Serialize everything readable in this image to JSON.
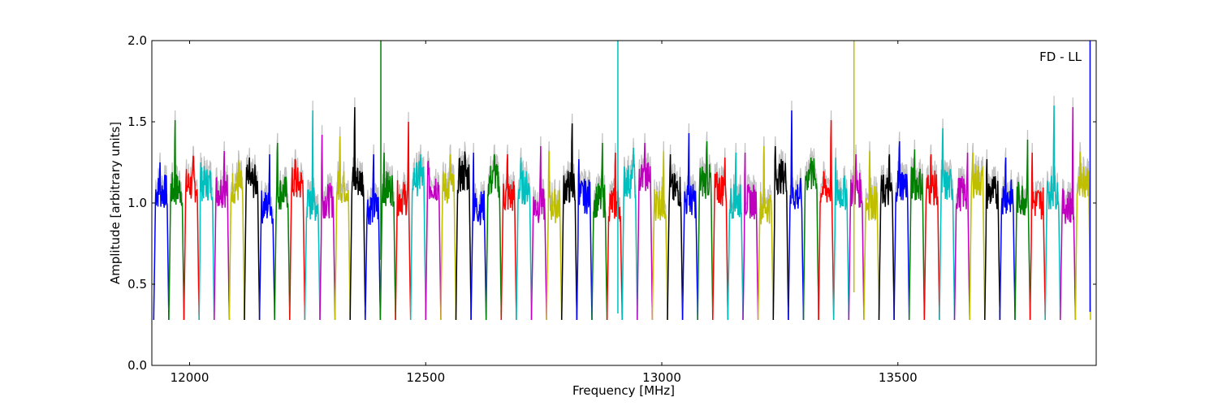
{
  "chart_data": {
    "type": "line",
    "title": "",
    "annotation": "FD - LL",
    "xlabel": "Frequency [MHz]",
    "ylabel": "Amplitude [arbitrary units]",
    "xlim": [
      11920,
      13920
    ],
    "ylim": [
      0,
      2.0
    ],
    "grid": false,
    "legend": "none",
    "x_ticks": [
      12000,
      12500,
      13000,
      13500
    ],
    "x_tick_labels": [
      "12000",
      "12500",
      "13000",
      "13500"
    ],
    "y_ticks": [
      0.0,
      0.5,
      1.0,
      1.5,
      2.0
    ],
    "y_tick_labels": [
      "0.0",
      "0.5",
      "1.0",
      "1.5",
      "2.0"
    ],
    "background_color": "#c0c0c0",
    "color_cycle": [
      "#0000ff",
      "#008000",
      "#ff0000",
      "#00bfbf",
      "#bf00bf",
      "#bfbf00",
      "#000000"
    ],
    "channel_width_mhz": 32,
    "channel_start_mhz": 11924,
    "channel_count": 62,
    "channel_peaks": [
      1.25,
      1.51,
      1.28,
      1.25,
      1.32,
      1.24,
      1.28,
      1.3,
      1.37,
      1.26,
      1.57,
      1.42,
      1.41,
      1.59,
      1.3,
      1.31,
      1.5,
      1.3,
      1.26,
      1.3,
      1.29,
      1.31,
      1.3,
      1.3,
      1.28,
      1.35,
      1.32,
      1.49,
      1.27,
      1.37,
      1.31,
      1.34,
      1.37,
      1.32,
      1.3,
      1.43,
      1.38,
      1.28,
      1.31,
      1.31,
      1.35,
      1.35,
      1.57,
      1.28,
      1.51,
      1.28,
      1.3,
      1.32,
      1.3,
      1.38,
      1.33,
      1.3,
      1.46,
      1.31,
      1.31,
      1.27,
      1.28,
      1.39,
      1.31,
      1.6,
      1.59,
      1.28
    ],
    "spikes": [
      {
        "x": 12405,
        "y_top": 2.0,
        "y_bottom": 0.65,
        "color": "#008000"
      },
      {
        "x": 12907,
        "y_top": 2.0,
        "y_bottom": 0.32,
        "color": "#00bfbf"
      },
      {
        "x": 13407,
        "y_top": 2.0,
        "y_bottom": 0.45,
        "color": "#bfbf00"
      },
      {
        "x": 13907,
        "y_top": 2.0,
        "y_bottom": 0.33,
        "color": "#0000ff"
      }
    ]
  }
}
